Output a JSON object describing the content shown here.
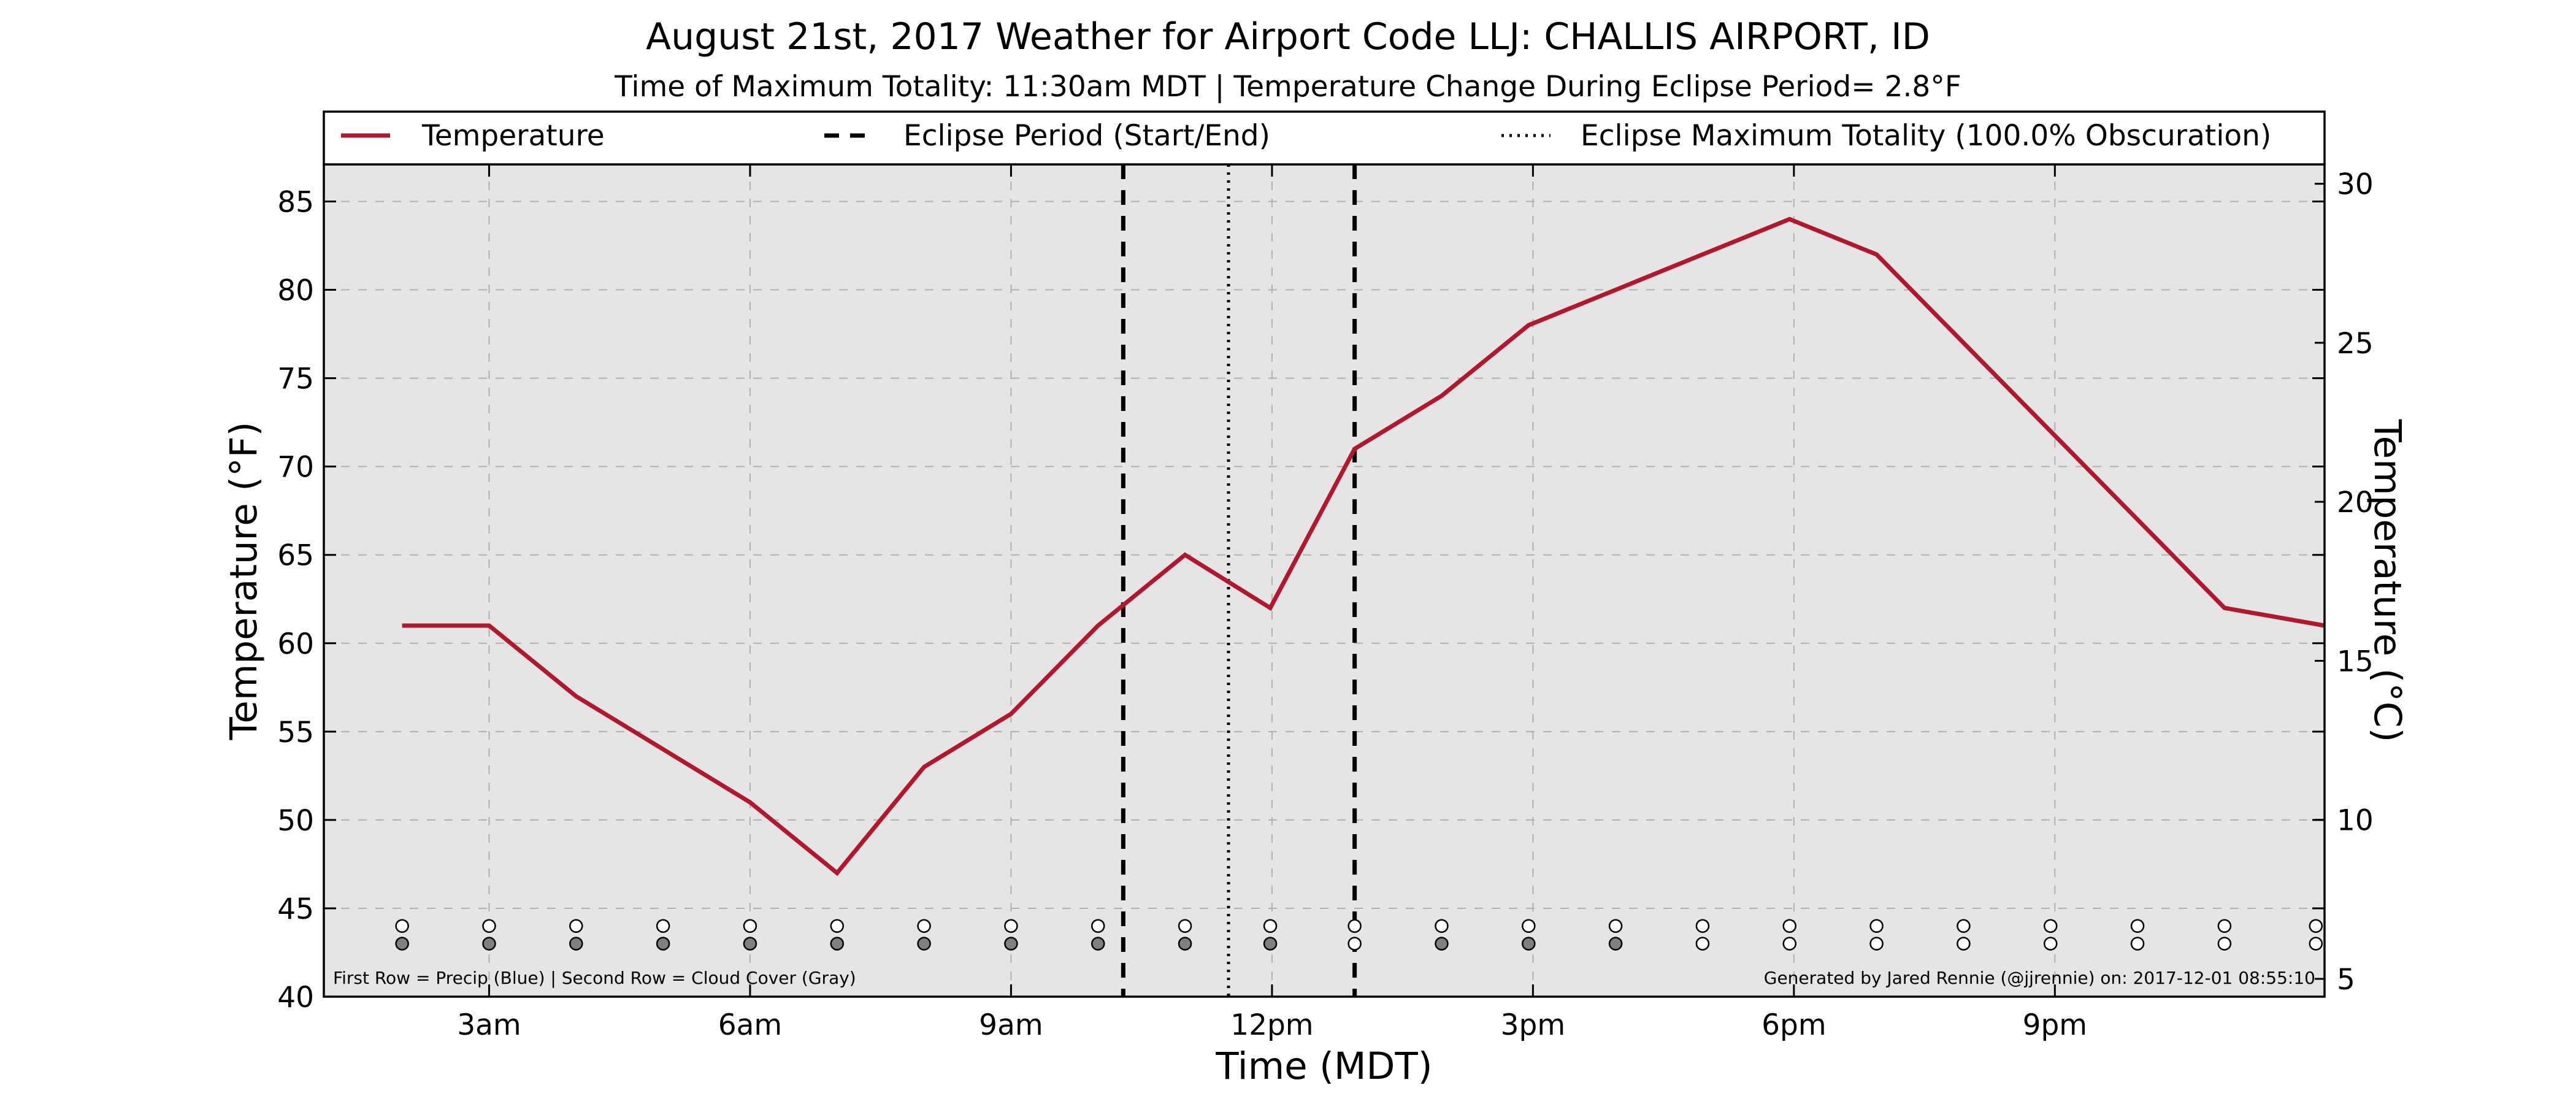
{
  "chart_data": {
    "type": "line",
    "title": "August 21st, 2017 Weather for Airport Code LLJ: CHALLIS AIRPORT, ID",
    "subtitle": "Time of Maximum Totality: 11:30am MDT | Temperature Change During Eclipse Period= 2.8°F",
    "xlabel": "Time (MDT)",
    "ylabel_left": "Temperature (°F)",
    "ylabel_right": "Temperature (°C)",
    "xlim": [
      1.1,
      24.1
    ],
    "ylim": [
      40,
      87.1
    ],
    "y2lim": [
      4.44,
      30.61
    ],
    "x_ticks": [
      {
        "value": 3,
        "label": "3am"
      },
      {
        "value": 6,
        "label": "6am"
      },
      {
        "value": 9,
        "label": "9am"
      },
      {
        "value": 12,
        "label": "12pm"
      },
      {
        "value": 15,
        "label": "3pm"
      },
      {
        "value": 18,
        "label": "6pm"
      },
      {
        "value": 21,
        "label": "9pm"
      }
    ],
    "y_ticks": [
      40,
      45,
      50,
      55,
      60,
      65,
      70,
      75,
      80,
      85
    ],
    "y2_ticks": [
      5,
      10,
      15,
      20,
      25,
      30
    ],
    "grid": true,
    "legend_position": "top",
    "series": [
      {
        "name": "Temperature",
        "color": "#b2182b",
        "x": [
          2,
          3,
          4,
          5,
          6,
          7,
          8,
          9,
          10,
          11,
          11.98,
          12.95,
          13.95,
          14.95,
          15.95,
          16.95,
          17.95,
          18.95,
          19.95,
          20.95,
          21.95,
          22.95,
          24.1
        ],
        "y": [
          61,
          61,
          57,
          54,
          51,
          47,
          53,
          56,
          61,
          65,
          62,
          71,
          74,
          78,
          80,
          82,
          84,
          82,
          77,
          72,
          67,
          62,
          61
        ]
      }
    ],
    "eclipse": {
      "start": 10.29,
      "max": 11.5,
      "end": 12.95,
      "start_end_label": "Eclipse Period (Start/End)",
      "max_label": "Eclipse Maximum Totality (100.0% Obscuration)"
    },
    "indicator_rows": {
      "precip_y": 44,
      "cloud_y": 43,
      "x": [
        2,
        3,
        4,
        5,
        6,
        7,
        8,
        9,
        10,
        11,
        11.98,
        12.95,
        13.95,
        14.95,
        15.95,
        16.95,
        17.95,
        18.95,
        19.95,
        20.95,
        21.95,
        22.95,
        24.0
      ],
      "precip_fill": [
        "white",
        "white",
        "white",
        "white",
        "white",
        "white",
        "white",
        "white",
        "white",
        "white",
        "white",
        "white",
        "white",
        "white",
        "white",
        "white",
        "white",
        "white",
        "white",
        "white",
        "white",
        "white",
        "white"
      ],
      "cloud_fill": [
        "gray",
        "gray",
        "gray",
        "gray",
        "gray",
        "gray",
        "gray",
        "gray",
        "gray",
        "gray",
        "gray",
        "white",
        "gray",
        "gray",
        "gray",
        "white",
        "white",
        "white",
        "white",
        "white",
        "white",
        "white",
        "white"
      ]
    },
    "footnote_left": "First Row = Precip (Blue) | Second Row = Cloud Cover (Gray)",
    "footnote_right": "Generated by Jared Rennie (@jjrennie) on: 2017-12-01 08:55:10",
    "colors": {
      "plot_bg": "#e5e5e5",
      "line": "#b2182b",
      "cloud_gray": "#808080",
      "grid": "#b0b0b0"
    }
  }
}
